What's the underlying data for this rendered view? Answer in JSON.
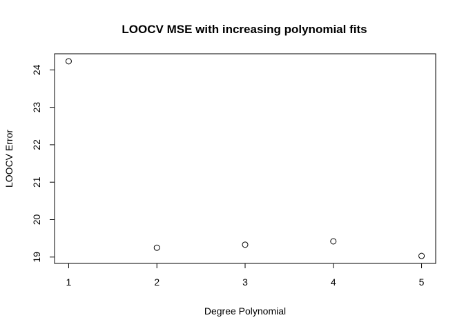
{
  "chart_data": {
    "type": "scatter",
    "title": "LOOCV MSE with increasing polynomial fits",
    "xlabel": "Degree Polynomial",
    "ylabel": "LOOCV Error",
    "x": [
      1,
      2,
      3,
      4,
      5
    ],
    "y": [
      24.23,
      19.25,
      19.33,
      19.42,
      19.03
    ],
    "xlim": [
      0.84,
      5.16
    ],
    "ylim": [
      18.83,
      24.43
    ],
    "xticks": [
      1,
      2,
      3,
      4,
      5
    ],
    "yticks": [
      19,
      20,
      21,
      22,
      23,
      24
    ],
    "grid": false,
    "marker": "open-circle",
    "colors": {
      "points": "#000000",
      "axes": "#000000",
      "background": "#ffffff"
    }
  }
}
